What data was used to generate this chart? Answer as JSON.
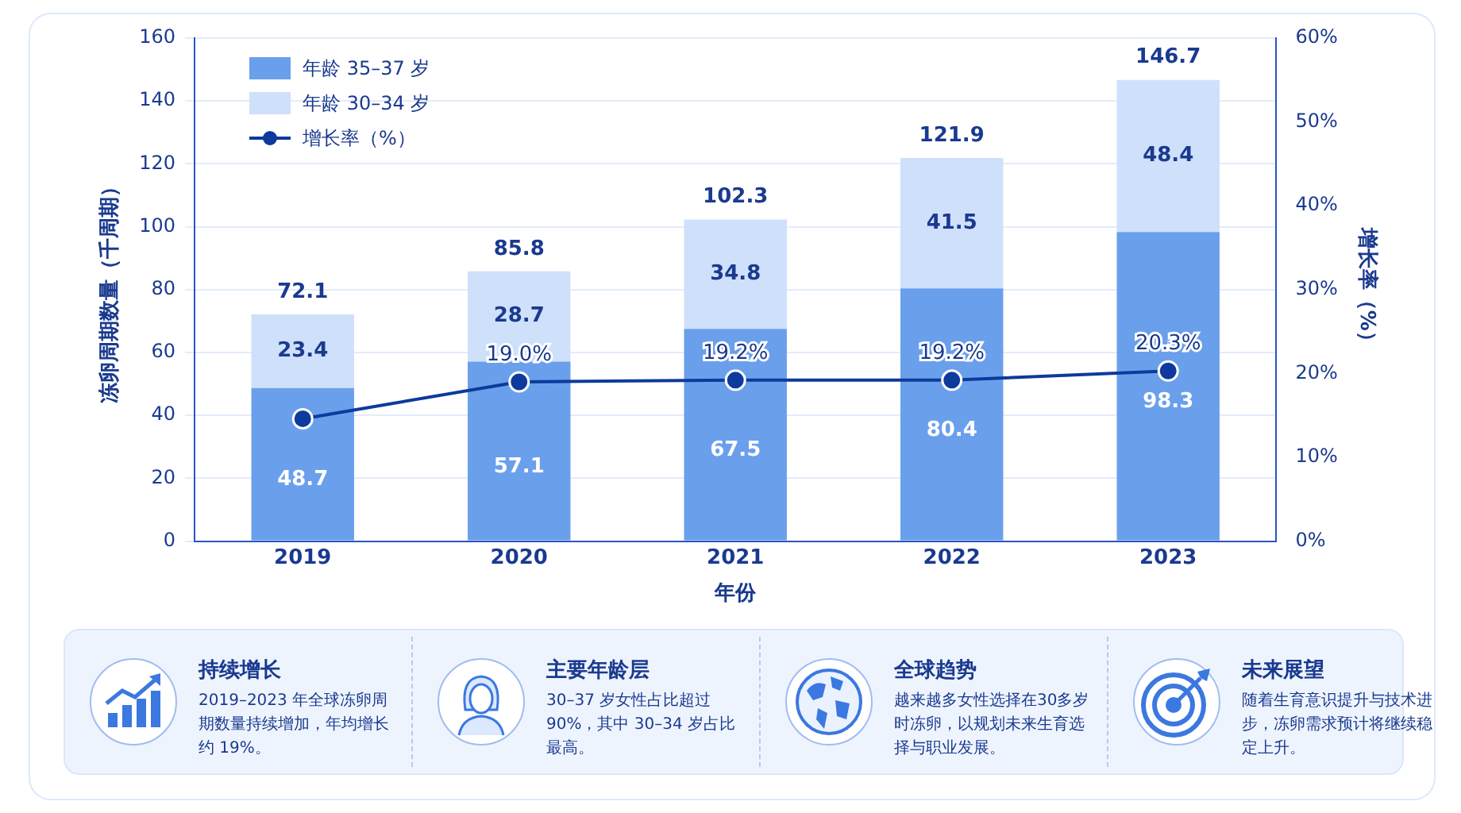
{
  "chart_data": {
    "type": "bar",
    "stacked": true,
    "xlabel": "年份",
    "ylabel": "冻卵周期数量（千周期）",
    "y2label": "增长率（%）",
    "categories": [
      "2019",
      "2020",
      "2021",
      "2022",
      "2023"
    ],
    "series": [
      {
        "name": "年龄 35–37 岁",
        "color": "#6a9fec",
        "values": [
          48.7,
          57.1,
          67.5,
          80.4,
          98.3
        ],
        "value_labels": [
          "48.7",
          "57.1",
          "67.5",
          "80.4",
          "98.3"
        ]
      },
      {
        "name": "年龄 30–34 岁",
        "color": "#cfe0fb",
        "values": [
          23.4,
          28.7,
          34.8,
          41.5,
          48.4
        ],
        "value_labels": [
          "23.4",
          "28.7",
          "34.8",
          "41.5",
          "48.4"
        ]
      },
      {
        "name": "增长率（%）",
        "type": "line",
        "axis": "y2",
        "color": "#0d3a9c",
        "values": [
          14.6,
          19.0,
          19.2,
          19.2,
          20.3
        ],
        "value_labels": [
          null,
          "19.0%",
          "19.2%",
          "19.2%",
          "20.3%"
        ]
      }
    ],
    "totals": [
      "72.1",
      "85.8",
      "102.3",
      "121.9",
      "146.7"
    ],
    "ylim": [
      0,
      160
    ],
    "yticks": [
      0,
      20,
      40,
      60,
      80,
      100,
      120,
      140,
      160
    ],
    "y2lim": [
      0,
      60
    ],
    "y2ticks": [
      {
        "value": 0,
        "label": "0%"
      },
      {
        "value": 10,
        "label": "10%"
      },
      {
        "value": 20,
        "label": "20%"
      },
      {
        "value": 30,
        "label": "30%"
      },
      {
        "value": 40,
        "label": "40%"
      },
      {
        "value": 50,
        "label": "50%"
      },
      {
        "value": 60,
        "label": "60%"
      }
    ],
    "grid": "y",
    "legend": "top left",
    "marker": "circle",
    "line_style": "solid",
    "annotations": [
      "持续增长",
      "2019–2023 年全球冻卵周期数量持续增加，年均增长约 19%。",
      "主要年龄层",
      "30–37 岁女性占比超过 90%，其中 30–34 岁占比最高。",
      "全球趋势",
      "越来越多女性选择在30多岁时冻卵，以规划未来生育选择与职业发展。",
      "未来展望",
      "随着生育意识提升与技术进步，冻卵需求预计将继续稳定上升。"
    ]
  }
}
